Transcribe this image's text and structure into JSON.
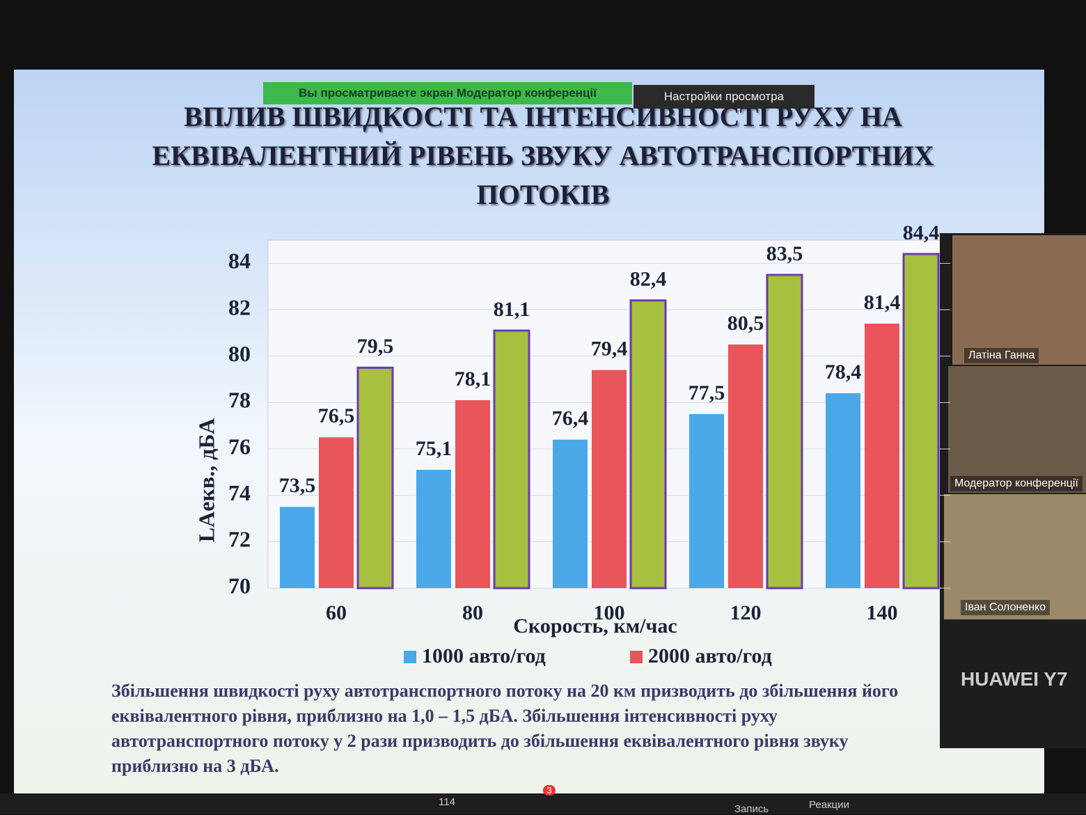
{
  "zoom": {
    "banner": "Вы просматриваете экран Модератор конференції",
    "view_options": "Настройки просмотра"
  },
  "chart_data": {
    "type": "bar",
    "title": "ВПЛИВ ШВИДКОСТІ ТА ІНТЕНСИВНОСТІ РУХУ НА ЕКВІВАЛЕНТНИЙ РІВЕНЬ ЗВУКУ АВТОТРАНСПОРТНИХ ПОТОКІВ",
    "x_label": "Скорость, км/час",
    "y_label": "LAекв., дБА",
    "categories": [
      "60",
      "80",
      "100",
      "120",
      "140"
    ],
    "series": [
      {
        "name": "1000 авто/год",
        "color": "#4aa8e8",
        "values": [
          73.5,
          75.1,
          76.4,
          77.5,
          78.4
        ],
        "value_labels": [
          "73,5",
          "75,1",
          "76,4",
          "77,5",
          "78,4"
        ]
      },
      {
        "name": "2000 авто/год",
        "color": "#e8555a",
        "values": [
          76.5,
          78.1,
          79.4,
          80.5,
          81.4
        ],
        "value_labels": [
          "76,5",
          "78,1",
          "79,4",
          "80,5",
          "81,4"
        ]
      },
      {
        "color": "#a8c040",
        "values": [
          79.5,
          81.1,
          82.4,
          83.5,
          84.4
        ],
        "value_labels": [
          "79,5",
          "81,1",
          "82,4",
          "83,5",
          "84,4"
        ]
      }
    ],
    "ylim": [
      70,
      85
    ],
    "yticks": [
      70,
      72,
      74,
      76,
      78,
      80,
      82,
      84
    ],
    "grid": true
  },
  "note": "Збільшення швидкості руху автотранспортного потоку на 20 км призводить до збільшення його еквівалентного рівня, приблизно на 1,0 – 1,5 дБА. Збільшення інтенсивності руху автотранспортного потоку у 2 рази призводить до збільшення еквівалентного рівня звуку приблизно на 3 дБА.",
  "participants": [
    {
      "name": "Латіна Ганна"
    },
    {
      "name": "Модератор конференції"
    },
    {
      "name": "Іван Солоненко"
    },
    {
      "name": "HUAWEI Y7"
    }
  ],
  "toolbar": {
    "participants_count": 114,
    "chat_badge": 3,
    "record": "Запись",
    "reactions": "Реакции"
  }
}
